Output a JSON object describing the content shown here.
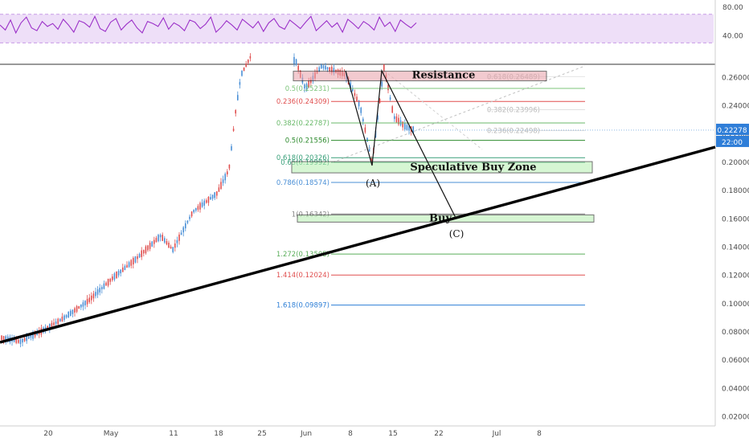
{
  "chart_data": [
    {
      "type": "line",
      "title": "",
      "role": "oscillator (RSI-style) pane",
      "y_ticks": [
        "80.00",
        "40.00"
      ],
      "band": [
        30,
        70
      ],
      "ylim": [
        0,
        90
      ],
      "color": "#9b30c8",
      "band_color": "#d9b8f0",
      "series": [
        {
          "values": [
            55,
            48,
            62,
            44,
            58,
            66,
            51,
            47,
            60,
            53,
            57,
            49,
            63,
            55,
            45,
            61,
            58,
            52,
            67,
            50,
            46,
            59,
            64,
            48,
            56,
            62,
            51,
            44,
            60,
            57,
            53,
            65,
            49,
            58,
            54,
            47,
            62,
            59,
            50,
            56,
            66,
            45,
            52,
            61,
            55,
            48,
            63,
            57,
            51,
            60,
            46,
            58,
            64,
            53,
            49,
            62,
            56,
            50,
            59,
            67,
            47,
            54,
            61,
            52,
            58,
            45,
            63,
            57,
            50,
            60,
            55,
            48,
            66,
            53,
            59,
            46,
            62,
            56,
            51,
            58
          ]
        }
      ]
    },
    {
      "type": "candlestick",
      "title": "",
      "ylim": [
        0.0,
        0.29
      ],
      "y_ticks": [
        "0.26000",
        "0.24000",
        "0.22000",
        "0.20000",
        "0.18000",
        "0.16000",
        "0.14000",
        "0.12000",
        "0.10000",
        "0.08000",
        "0.06000",
        "0.04000",
        "0.02000"
      ],
      "x_ticks": [
        "20",
        "May",
        "11",
        "18",
        "25",
        "Jun",
        "8",
        "15",
        "22",
        "Jul",
        "8"
      ],
      "current_price": "0.22278",
      "countdown": "22:00",
      "up_color": "#e04f4f",
      "down_color": "#4a8fd6",
      "trendline_color": "#000000",
      "fib_retracements": [
        {
          "label": "0.5(0.25231)",
          "price": 0.25231,
          "color": "#7cc47a"
        },
        {
          "label": "0.236(0.24309)",
          "price": 0.24309,
          "color": "#e04f4f"
        },
        {
          "label": "0.382(0.22787)",
          "price": 0.22787,
          "color": "#6ab96a"
        },
        {
          "label": "0.5(0.21556)",
          "price": 0.21556,
          "color": "#2e8b2e"
        },
        {
          "label": "0.618(0.20326)",
          "price": 0.20326,
          "color": "#3aa07a"
        },
        {
          "label": "0.65(0.19992)",
          "price": 0.19992,
          "color": "#3aa07a"
        },
        {
          "label": "0.786(0.18574)",
          "price": 0.18574,
          "color": "#4a8fd6"
        },
        {
          "label": "1(0.16342)",
          "price": 0.16342,
          "color": "#888888"
        },
        {
          "label": "1.272(0.13505)",
          "price": 0.13505,
          "color": "#5aae5a"
        },
        {
          "label": "1.414(0.12024)",
          "price": 0.12024,
          "color": "#e04f4f"
        },
        {
          "label": "1.618(0.09897)",
          "price": 0.09897,
          "color": "#2e7fd6"
        }
      ],
      "faded_labels": [
        "0.618(0.26489)",
        "0.382(0.23996)",
        "0.236(0.22498)"
      ],
      "zones": [
        {
          "label": "Resistance",
          "color": "#e8a0a8"
        },
        {
          "label": "Speculative Buy Zone",
          "color": "#b5f0b0"
        },
        {
          "label": "Buy",
          "color": "#b5f0b0"
        }
      ],
      "wave_labels": [
        "(A)",
        "(C)"
      ]
    }
  ]
}
